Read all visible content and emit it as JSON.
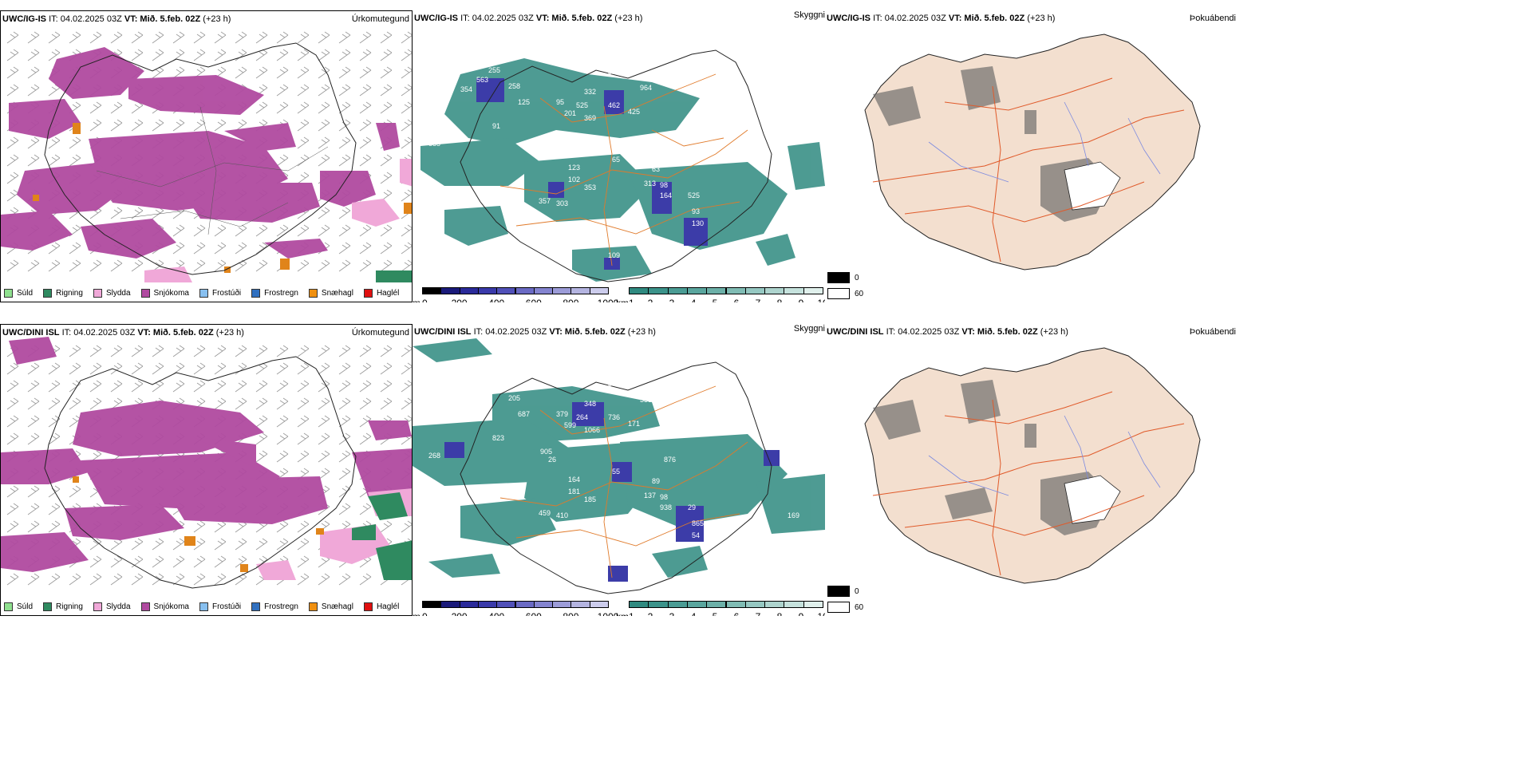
{
  "colors": {
    "teal": "#2f8a80",
    "magenta": "#b04aa0",
    "orange": "#e0841a",
    "purple": "#3c3ca8",
    "land": "#f3dfcf",
    "road": "#e05a2a",
    "river": "#7c8ae0"
  },
  "rows": [
    {
      "model": "UWC/IG-IS",
      "it": "IT: 04.02.2025 03Z",
      "vt_label": "VT:",
      "vt": "Mið. 5.feb. 02Z",
      "lead": "(+23 h)"
    },
    {
      "model": "UWC/DINI ISL",
      "it": "IT: 04.02.2025 03Z",
      "vt_label": "VT:",
      "vt": "Mið. 5.feb. 02Z",
      "lead": "(+23 h)"
    }
  ],
  "panel_titles": {
    "precip": "Úrkomutegund",
    "cloud": "Skyggni",
    "fog": "Þokuábendi"
  },
  "precip_legend": [
    {
      "label": "Súld",
      "color": "#8fe08f"
    },
    {
      "label": "Rigning",
      "color": "#2f8a60"
    },
    {
      "label": "Slydda",
      "color": "#f0a8d8"
    },
    {
      "label": "Snjókoma",
      "color": "#b04aa0"
    },
    {
      "label": "Frostúði",
      "color": "#88c0f0"
    },
    {
      "label": "Frostregn",
      "color": "#3070c0"
    },
    {
      "label": "Snæhagl",
      "color": "#f09010"
    },
    {
      "label": "Haglél",
      "color": "#e01010"
    }
  ],
  "altitude_bar": {
    "unit": "m",
    "ticks": [
      "0",
      "200",
      "400",
      "600",
      "800",
      "1000"
    ],
    "colors": [
      "#000000",
      "#1a1a7a",
      "#2a2a9a",
      "#3a3aaa",
      "#5050b8",
      "#6a6ac4",
      "#8484d0",
      "#9c9cd8",
      "#b4b4e0",
      "#ccccec"
    ]
  },
  "visibility_bar": {
    "unit": "km",
    "ticks": [
      "1",
      "2",
      "3",
      "4",
      "5",
      "6",
      "7",
      "8",
      "9",
      "10"
    ],
    "colors": [
      "#2f8a80",
      "#3b938a",
      "#4a9c94",
      "#5aa69e",
      "#6cb0a8",
      "#80bcb4",
      "#96c8c2",
      "#aed4ce",
      "#c6e2dd",
      "#e0f0ec"
    ]
  },
  "fog_legend": [
    {
      "value": "0",
      "color": "#000000"
    },
    {
      "value": "60",
      "color": "#ffffff"
    }
  ],
  "labels_top": [
    "563",
    "255",
    "364",
    "318",
    "332",
    "964",
    "354",
    "258",
    "125",
    "95",
    "525",
    "462",
    "369",
    "425",
    "201",
    "91",
    "951",
    "976",
    "865",
    "885",
    "65",
    "63",
    "123",
    "102",
    "313",
    "98",
    "353",
    "357",
    "303",
    "525",
    "164",
    "93",
    "130",
    "997",
    "473",
    "109"
  ],
  "labels_bottom": [
    "204",
    "158",
    "133",
    "306",
    "348",
    "333",
    "189",
    "205",
    "687",
    "379",
    "264",
    "736",
    "1066",
    "171",
    "599",
    "823",
    "905",
    "876",
    "26",
    "268",
    "55",
    "89",
    "164",
    "181",
    "137",
    "98",
    "185",
    "459",
    "410",
    "29",
    "938",
    "865",
    "54",
    "169"
  ]
}
